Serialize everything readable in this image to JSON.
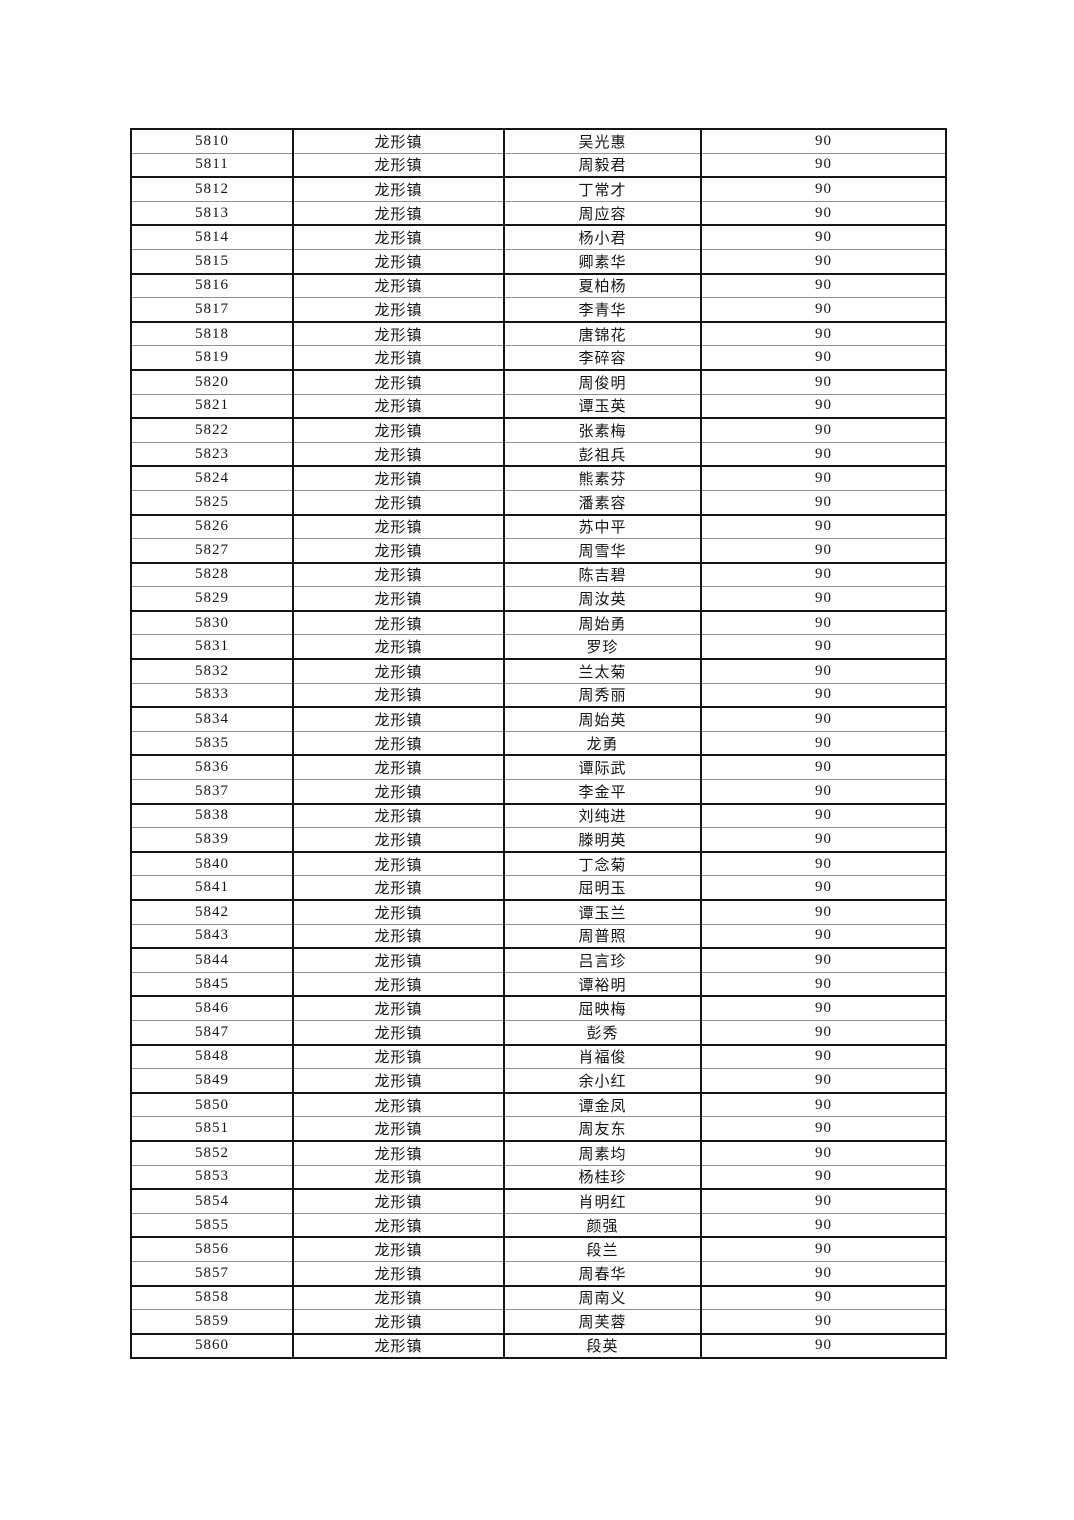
{
  "page": {
    "background_color": "#ffffff",
    "text_color": "#141414",
    "border_color": "#151515",
    "thin_rule_color": "#8f8f8f"
  },
  "table": {
    "columns": [
      "id",
      "town",
      "name",
      "score"
    ],
    "rows": [
      [
        "5810",
        "龙形镇",
        "吴光惠",
        "90"
      ],
      [
        "5811",
        "龙形镇",
        "周毅君",
        "90"
      ],
      [
        "5812",
        "龙形镇",
        "丁常才",
        "90"
      ],
      [
        "5813",
        "龙形镇",
        "周应容",
        "90"
      ],
      [
        "5814",
        "龙形镇",
        "杨小君",
        "90"
      ],
      [
        "5815",
        "龙形镇",
        "卿素华",
        "90"
      ],
      [
        "5816",
        "龙形镇",
        "夏柏杨",
        "90"
      ],
      [
        "5817",
        "龙形镇",
        "李青华",
        "90"
      ],
      [
        "5818",
        "龙形镇",
        "唐锦花",
        "90"
      ],
      [
        "5819",
        "龙形镇",
        "李碎容",
        "90"
      ],
      [
        "5820",
        "龙形镇",
        "周俊明",
        "90"
      ],
      [
        "5821",
        "龙形镇",
        "谭玉英",
        "90"
      ],
      [
        "5822",
        "龙形镇",
        "张素梅",
        "90"
      ],
      [
        "5823",
        "龙形镇",
        "彭祖兵",
        "90"
      ],
      [
        "5824",
        "龙形镇",
        "熊素芬",
        "90"
      ],
      [
        "5825",
        "龙形镇",
        "潘素容",
        "90"
      ],
      [
        "5826",
        "龙形镇",
        "苏中平",
        "90"
      ],
      [
        "5827",
        "龙形镇",
        "周雪华",
        "90"
      ],
      [
        "5828",
        "龙形镇",
        "陈吉碧",
        "90"
      ],
      [
        "5829",
        "龙形镇",
        "周汝英",
        "90"
      ],
      [
        "5830",
        "龙形镇",
        "周始勇",
        "90"
      ],
      [
        "5831",
        "龙形镇",
        "罗珍",
        "90"
      ],
      [
        "5832",
        "龙形镇",
        "兰太菊",
        "90"
      ],
      [
        "5833",
        "龙形镇",
        "周秀丽",
        "90"
      ],
      [
        "5834",
        "龙形镇",
        "周始英",
        "90"
      ],
      [
        "5835",
        "龙形镇",
        "龙勇",
        "90"
      ],
      [
        "5836",
        "龙形镇",
        "谭际武",
        "90"
      ],
      [
        "5837",
        "龙形镇",
        "李金平",
        "90"
      ],
      [
        "5838",
        "龙形镇",
        "刘纯进",
        "90"
      ],
      [
        "5839",
        "龙形镇",
        "滕明英",
        "90"
      ],
      [
        "5840",
        "龙形镇",
        "丁念菊",
        "90"
      ],
      [
        "5841",
        "龙形镇",
        "屈明玉",
        "90"
      ],
      [
        "5842",
        "龙形镇",
        "谭玉兰",
        "90"
      ],
      [
        "5843",
        "龙形镇",
        "周普照",
        "90"
      ],
      [
        "5844",
        "龙形镇",
        "吕言珍",
        "90"
      ],
      [
        "5845",
        "龙形镇",
        "谭裕明",
        "90"
      ],
      [
        "5846",
        "龙形镇",
        "屈映梅",
        "90"
      ],
      [
        "5847",
        "龙形镇",
        "彭秀",
        "90"
      ],
      [
        "5848",
        "龙形镇",
        "肖福俊",
        "90"
      ],
      [
        "5849",
        "龙形镇",
        "余小红",
        "90"
      ],
      [
        "5850",
        "龙形镇",
        "谭金凤",
        "90"
      ],
      [
        "5851",
        "龙形镇",
        "周友东",
        "90"
      ],
      [
        "5852",
        "龙形镇",
        "周素均",
        "90"
      ],
      [
        "5853",
        "龙形镇",
        "杨桂珍",
        "90"
      ],
      [
        "5854",
        "龙形镇",
        "肖明红",
        "90"
      ],
      [
        "5855",
        "龙形镇",
        "颜强",
        "90"
      ],
      [
        "5856",
        "龙形镇",
        "段兰",
        "90"
      ],
      [
        "5857",
        "龙形镇",
        "周春华",
        "90"
      ],
      [
        "5858",
        "龙形镇",
        "周南义",
        "90"
      ],
      [
        "5859",
        "龙形镇",
        "周芙蓉",
        "90"
      ],
      [
        "5860",
        "龙形镇",
        "段英",
        "90"
      ]
    ]
  }
}
